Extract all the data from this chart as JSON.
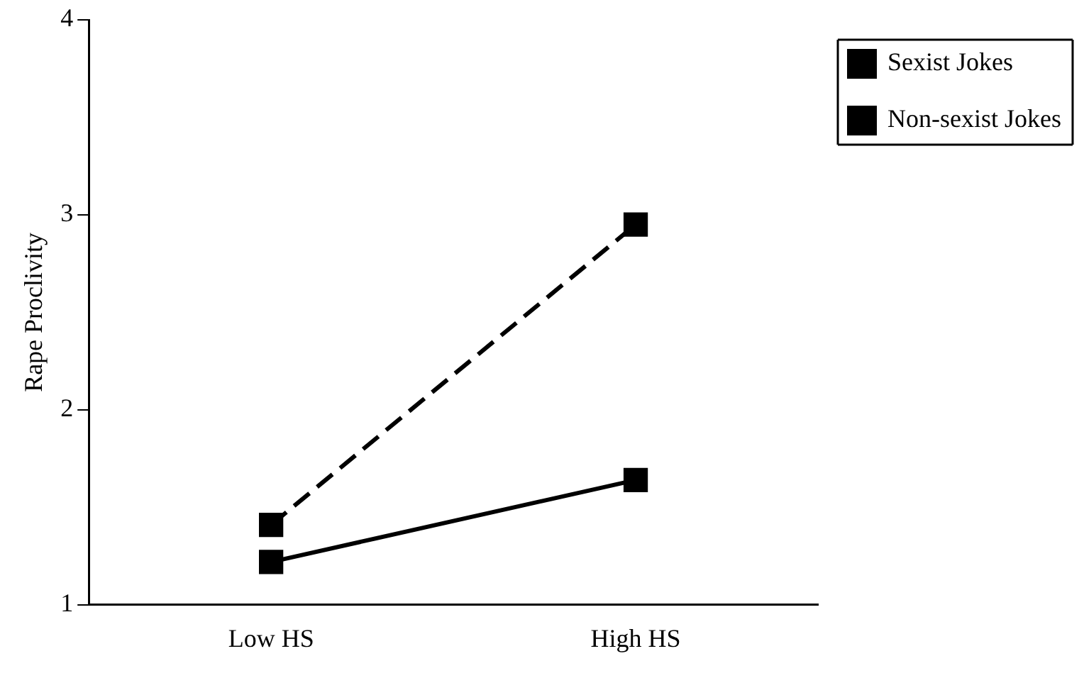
{
  "chart_data": {
    "type": "line",
    "ylabel": "Rape Proclivity",
    "categories": [
      "Low HS",
      "High HS"
    ],
    "series": [
      {
        "name": "Sexist Jokes",
        "color": "#000000",
        "values": [
          1.41,
          2.95
        ],
        "line_style": "dashed"
      },
      {
        "name": "Non-sexist Jokes",
        "color": "#000000",
        "values": [
          1.22,
          1.64
        ],
        "line_style": "solid"
      }
    ],
    "ylim": [
      1,
      4
    ],
    "yticks": [
      1,
      2,
      3,
      4
    ],
    "grid": false,
    "legend": "top right",
    "marker": "square"
  }
}
